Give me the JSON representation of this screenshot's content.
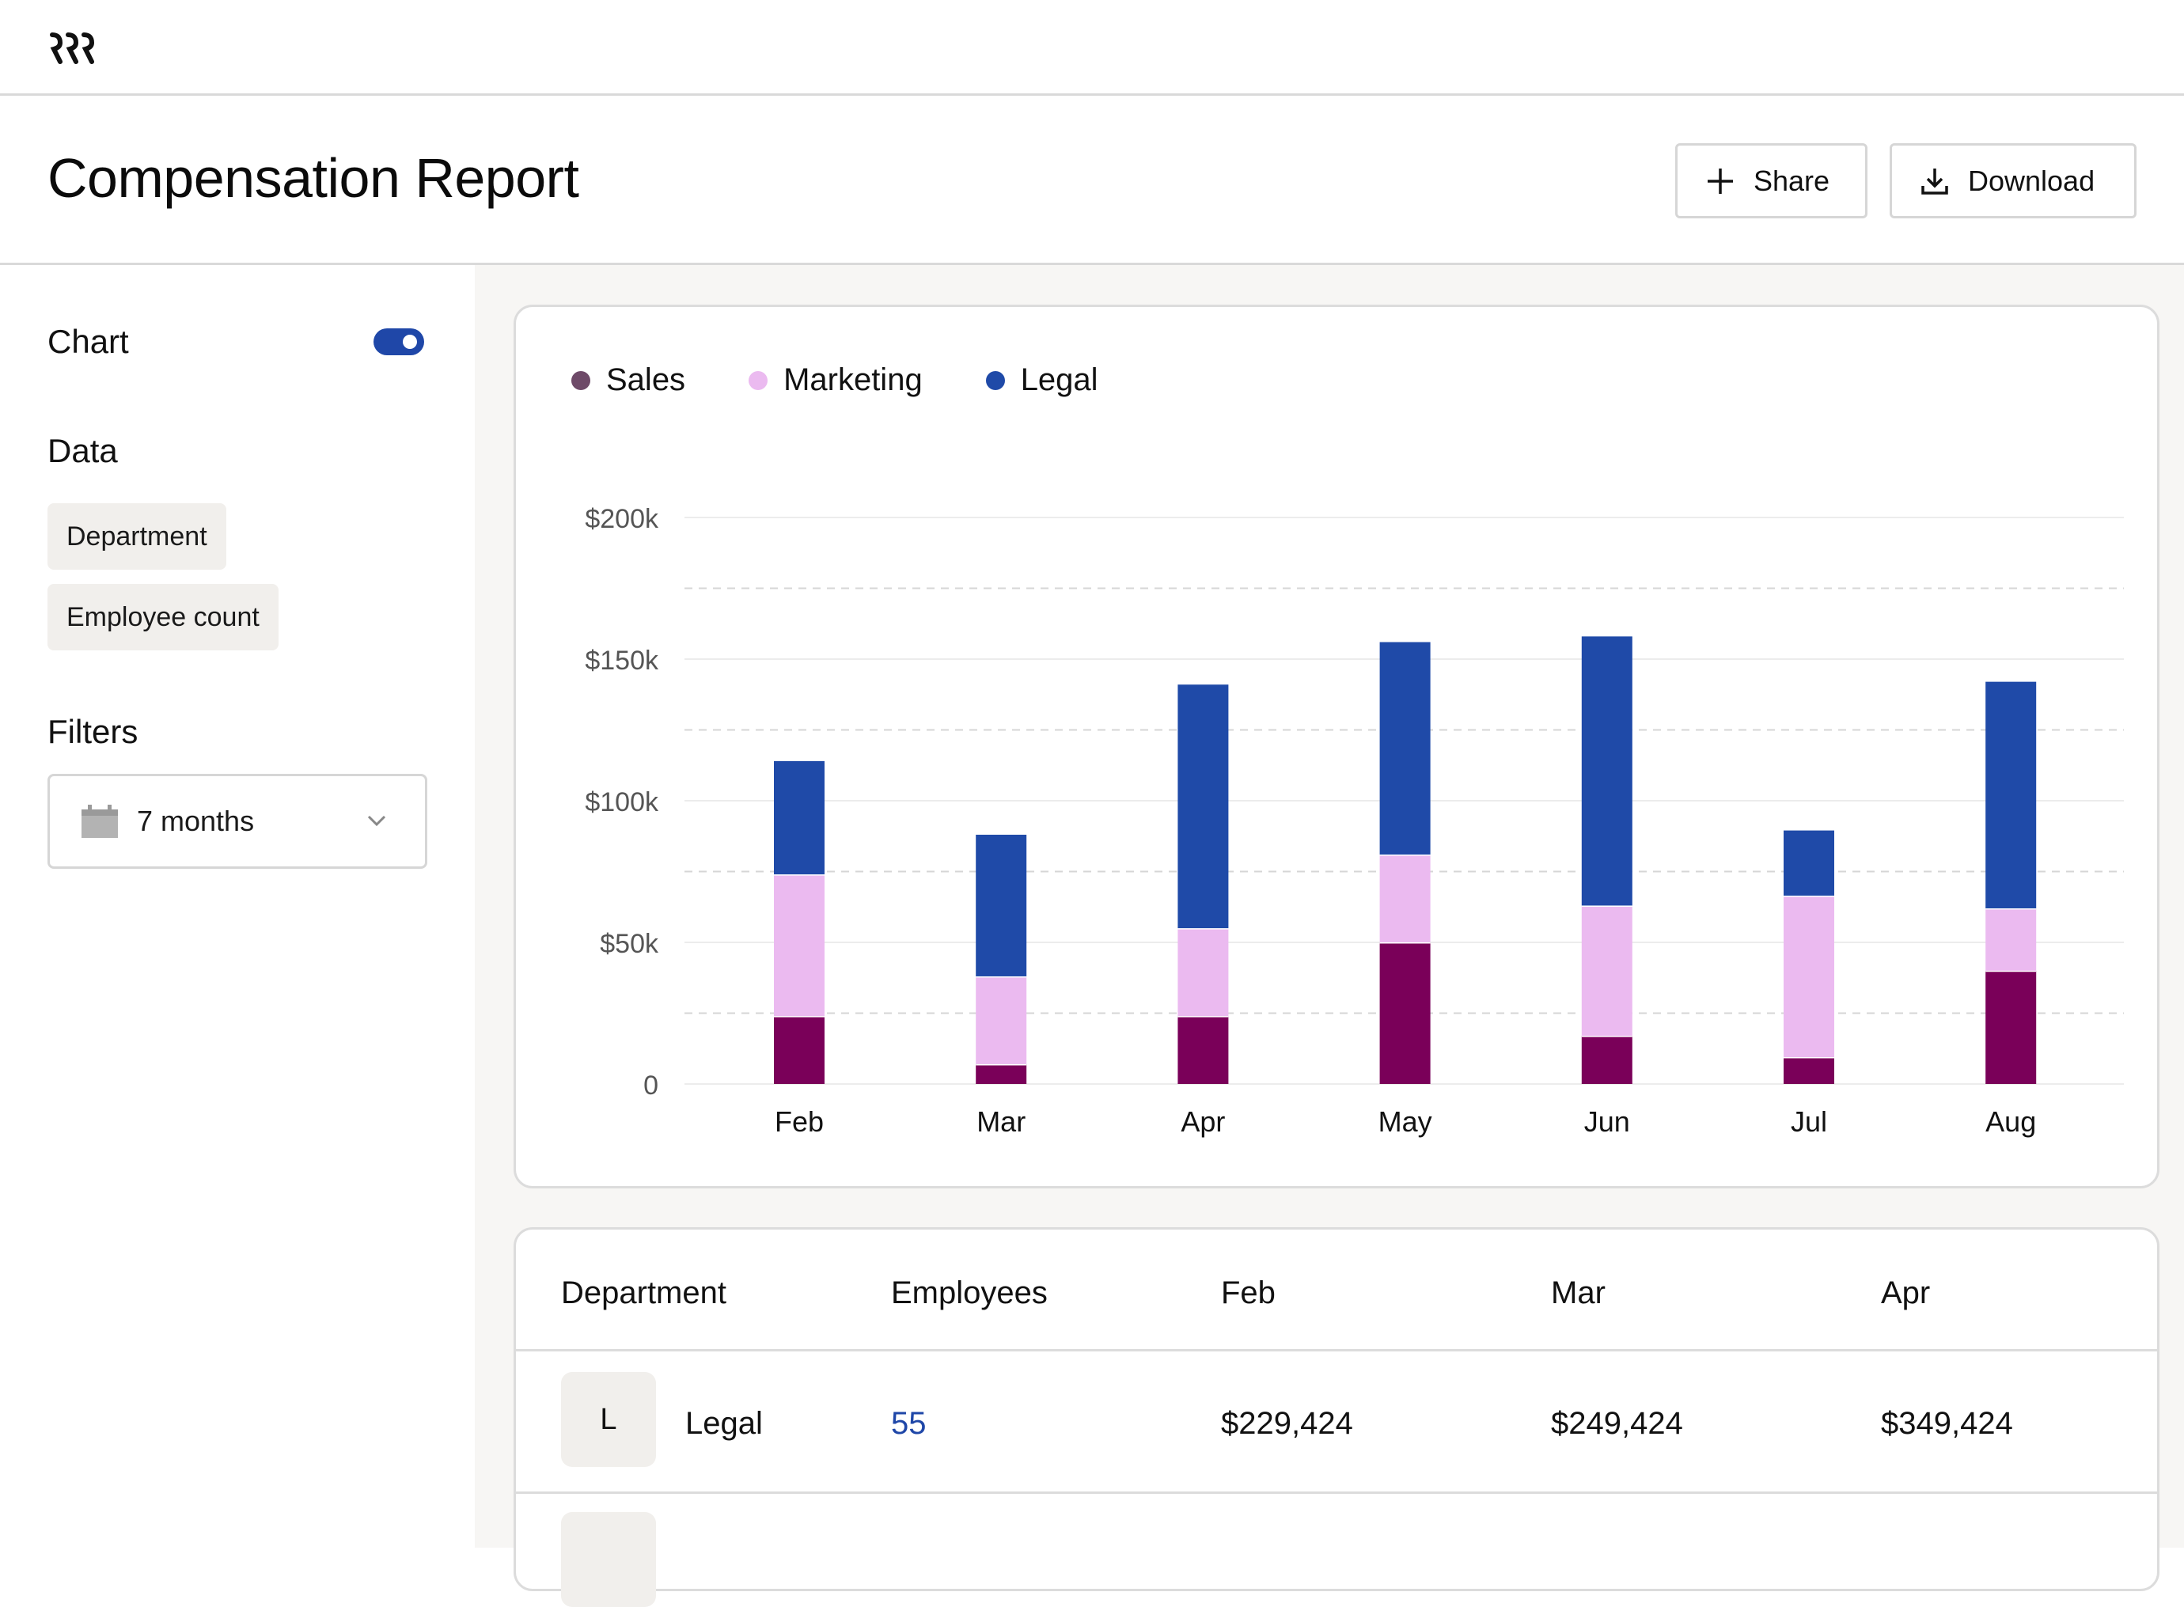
{
  "header": {
    "title": "Compensation Report",
    "share_label": "Share",
    "download_label": "Download"
  },
  "sidebar": {
    "chart_label": "Chart",
    "chart_toggle_on": true,
    "data_label": "Data",
    "data_chips": [
      "Department",
      "Employee count"
    ],
    "filters_label": "Filters",
    "period_select": "7 months"
  },
  "chart_data": {
    "type": "bar",
    "stacked": true,
    "categories": [
      "Feb",
      "Mar",
      "Apr",
      "May",
      "Jun",
      "Jul",
      "Aug"
    ],
    "series": [
      {
        "name": "Sales",
        "color": "#7a0059",
        "legend_color": "#6e4a68",
        "values": [
          24000,
          7000,
          24000,
          50000,
          17000,
          9500,
          40000
        ]
      },
      {
        "name": "Marketing",
        "color": "#ebbaf0",
        "legend_color": "#ebbaf0",
        "values": [
          50000,
          31000,
          31000,
          31000,
          46000,
          57000,
          22000
        ]
      },
      {
        "name": "Legal",
        "color": "#1f4aa8",
        "legend_color": "#1f4aa8",
        "values": [
          40000,
          50000,
          86000,
          75000,
          95000,
          23000,
          80000
        ]
      }
    ],
    "y_ticks": [
      "0",
      "$50k",
      "$100k",
      "$150k",
      "$200k"
    ],
    "ylim": [
      0,
      200000
    ],
    "grid": true,
    "legend_position": "top-left"
  },
  "table": {
    "columns": [
      "Department",
      "Employees",
      "Feb",
      "Mar",
      "Apr"
    ],
    "rows": [
      {
        "badge": "L",
        "department": "Legal",
        "employees": "55",
        "feb": "$229,424",
        "mar": "$249,424",
        "apr": "$349,424"
      }
    ]
  }
}
